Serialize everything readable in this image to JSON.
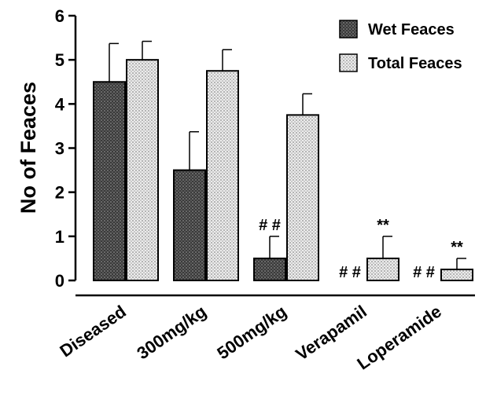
{
  "chart_data": {
    "type": "bar",
    "ylabel": "No of Feaces",
    "xlabel": "",
    "ylim": [
      0,
      6
    ],
    "yticks": [
      "0",
      "1",
      "2",
      "3",
      "4",
      "5",
      "6"
    ],
    "categories": [
      "Diseased",
      "300mg/kg",
      "500mg/kg",
      "Verapamil",
      "Loperamide"
    ],
    "series": [
      {
        "name": "Wet Feaces",
        "values": [
          4.5,
          2.5,
          0.5,
          0,
          0
        ],
        "errors": [
          0.87,
          0.87,
          0.5,
          0,
          0
        ],
        "annotations": [
          "",
          "",
          "##",
          "##",
          "##"
        ],
        "color": "#444444"
      },
      {
        "name": "Total Feaces",
        "values": [
          5.0,
          4.75,
          3.75,
          0.5,
          0.25
        ],
        "errors": [
          0.42,
          0.48,
          0.48,
          0.5,
          0.25
        ],
        "annotations": [
          "",
          "",
          "",
          "**",
          "**"
        ],
        "color": "#d8d8d8"
      }
    ],
    "legend_position": "top-right",
    "grid": false
  }
}
